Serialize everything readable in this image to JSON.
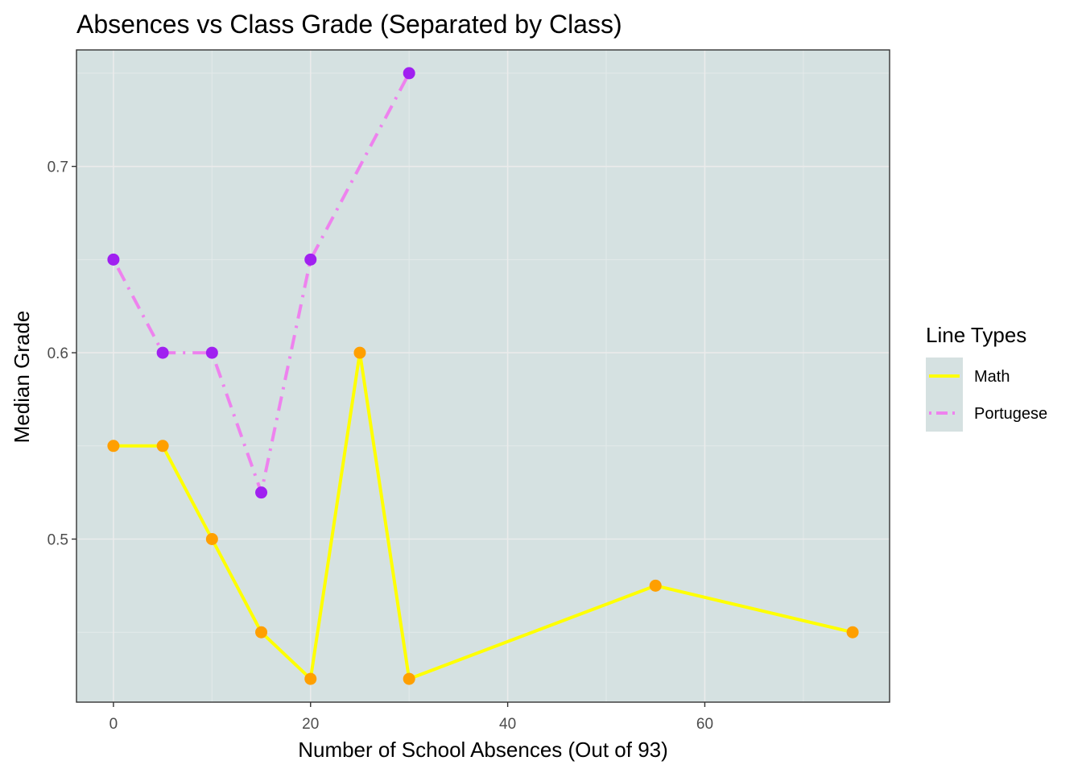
{
  "chart_data": {
    "type": "line",
    "title": "Absences vs Class Grade (Separated by Class)",
    "xlabel": "Number of School Absences (Out of 93)",
    "ylabel": "Median Grade",
    "xlim": [
      -3.75,
      78.75
    ],
    "ylim": [
      0.4125,
      0.7625
    ],
    "x_ticks": [
      0,
      20,
      40,
      60
    ],
    "x_tick_labels": [
      "0",
      "20",
      "40",
      "60"
    ],
    "y_ticks": [
      0.5,
      0.6,
      0.7
    ],
    "y_tick_labels": [
      "0.5",
      "0.6",
      "0.7"
    ],
    "grid": true,
    "legend": {
      "title": "Line Types",
      "position": "right"
    },
    "series": [
      {
        "name": "Math",
        "line_color": "#ffff00",
        "point_color": "#ff9f00",
        "line_style": "solid",
        "x": [
          0,
          5,
          10,
          15,
          20,
          25,
          30,
          55,
          75
        ],
        "y": [
          0.55,
          0.55,
          0.5,
          0.45,
          0.425,
          0.6,
          0.425,
          0.475,
          0.45
        ]
      },
      {
        "name": "Portugese",
        "line_color": "#ee82ee",
        "point_color": "#a020f0",
        "line_style": "dotdash",
        "x": [
          0,
          5,
          10,
          15,
          20,
          30
        ],
        "y": [
          0.65,
          0.6,
          0.6,
          0.525,
          0.65,
          0.75
        ]
      }
    ],
    "colors": {
      "panel_background": "#d5e1e1",
      "grid_major": "#ebebeb",
      "grid_minor": "#e3eaea",
      "panel_border": "#333333"
    }
  }
}
